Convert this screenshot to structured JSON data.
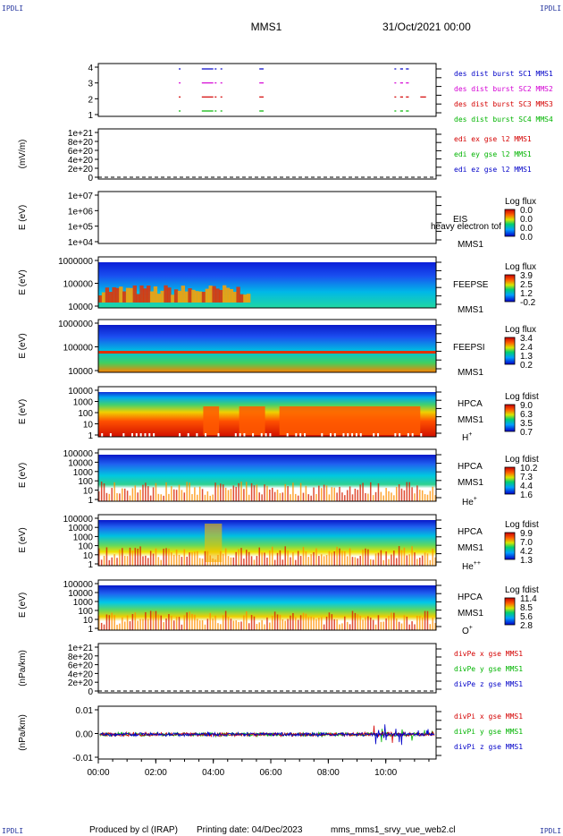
{
  "header": {
    "corner_left_top": "IPDLI",
    "corner_right_top": "IPDLI",
    "corner_left_bottom": "IPDLI",
    "corner_right_bottom": "IPDLI",
    "title": "MMS1",
    "datetime": "31/Oct/2021 00:00"
  },
  "footer": {
    "produced": "Produced by cl (IRAP)",
    "printing": "Printing date: 04/Dec/2023",
    "file": "mms_mms1_srvy_vue_web2.cl"
  },
  "colors": {
    "red": "#d40000",
    "green": "#00b400",
    "blue": "#0000c8",
    "magenta": "#d400d4"
  },
  "chart_data": [
    {
      "type": "line",
      "panel": "burst-status",
      "ytick_labels": [
        "1",
        "2",
        "3",
        "4"
      ],
      "ylim": [
        0.5,
        4.5
      ],
      "series": [
        {
          "name": "des dist burst SC1 MMS1",
          "color": "blue",
          "y": 4,
          "intervals": [
            [
              2.8,
              2.85
            ],
            [
              3.6,
              4.0
            ],
            [
              4.05,
              4.1
            ],
            [
              4.25,
              4.3
            ],
            [
              5.6,
              5.75
            ],
            [
              10.3,
              10.35
            ],
            [
              10.5,
              10.6
            ],
            [
              10.7,
              10.8
            ]
          ]
        },
        {
          "name": "des dist burst SC2 MMS2",
          "color": "magenta",
          "y": 3,
          "intervals": [
            [
              2.8,
              2.85
            ],
            [
              3.6,
              4.0
            ],
            [
              4.05,
              4.1
            ],
            [
              4.25,
              4.3
            ],
            [
              5.6,
              5.75
            ],
            [
              10.3,
              10.35
            ],
            [
              10.5,
              10.6
            ],
            [
              10.7,
              10.8
            ]
          ]
        },
        {
          "name": "des dist burst SC3 MMS3",
          "color": "red",
          "y": 2,
          "intervals": [
            [
              2.8,
              2.85
            ],
            [
              3.6,
              4.0
            ],
            [
              4.05,
              4.1
            ],
            [
              4.25,
              4.3
            ],
            [
              5.6,
              5.75
            ],
            [
              10.3,
              10.35
            ],
            [
              10.5,
              10.6
            ],
            [
              10.7,
              10.8
            ],
            [
              11.2,
              11.4
            ]
          ]
        },
        {
          "name": "des dist burst SC4 MMS4",
          "color": "green",
          "y": 1,
          "intervals": [
            [
              2.8,
              2.85
            ],
            [
              3.6,
              4.0
            ],
            [
              4.05,
              4.1
            ],
            [
              4.25,
              4.3
            ],
            [
              5.6,
              5.75
            ],
            [
              10.3,
              10.35
            ],
            [
              10.5,
              10.6
            ],
            [
              10.7,
              10.8
            ]
          ]
        }
      ]
    },
    {
      "type": "line",
      "panel": "edi-e",
      "ylabel": "(mV/m)",
      "ytick_labels": [
        "0",
        "2e+20",
        "4e+20",
        "6e+20",
        "8e+20",
        "1e+21"
      ],
      "ylim": [
        0,
        1e+21
      ],
      "series": [
        {
          "name": "edi ex gse l2 MMS1",
          "color": "red"
        },
        {
          "name": "edi ey gse l2 MMS1",
          "color": "green"
        },
        {
          "name": "edi ez gse l2 MMS1",
          "color": "blue"
        }
      ]
    },
    {
      "type": "heatmap",
      "panel": "eis",
      "ylabel": "E (eV)",
      "ytick_labels": [
        "1e+04",
        "1e+05",
        "1e+06",
        "1e+07"
      ],
      "ylim": [
        10000.0,
        10000000.0
      ],
      "right_labels": [
        "EIS",
        "MMS1"
      ],
      "overlay_text": "heavy electron tof",
      "colorbar": {
        "title": "Log flux",
        "ticks": [
          "0.0",
          "0.0",
          "0.0",
          "0.0"
        ]
      }
    },
    {
      "type": "heatmap",
      "panel": "feepse",
      "ylabel": "E (eV)",
      "ytick_labels": [
        "10000",
        "100000",
        "1000000"
      ],
      "ylim": [
        10000.0,
        1000000.0
      ],
      "right_labels": [
        "FEEPSE",
        "MMS1"
      ],
      "colorbar": {
        "title": "Log flux",
        "ticks": [
          "3.9",
          "2.5",
          "1.2",
          "-0.2"
        ]
      }
    },
    {
      "type": "heatmap",
      "panel": "feepsi",
      "ylabel": "E (eV)",
      "ytick_labels": [
        "10000",
        "100000",
        "1000000"
      ],
      "ylim": [
        10000.0,
        1000000.0
      ],
      "right_labels": [
        "FEEPSI",
        "MMS1"
      ],
      "colorbar": {
        "title": "Log flux",
        "ticks": [
          "3.4",
          "2.4",
          "1.3",
          "0.2"
        ]
      }
    },
    {
      "type": "heatmap",
      "panel": "hpca-h",
      "ylabel": "E (eV)",
      "ytick_labels": [
        "1",
        "10",
        "100",
        "1000",
        "10000"
      ],
      "ylim": [
        1,
        40000
      ],
      "right_labels": [
        "HPCA",
        "MMS1"
      ],
      "species": {
        "base": "H",
        "sup": "+"
      },
      "colorbar": {
        "title": "Log fdist",
        "ticks": [
          "9.0",
          "6.3",
          "3.5",
          "0.7"
        ]
      }
    },
    {
      "type": "heatmap",
      "panel": "hpca-he",
      "ylabel": "E (eV)",
      "ytick_labels": [
        "1",
        "10",
        "100",
        "1000",
        "10000",
        "100000"
      ],
      "ylim": [
        1,
        100000
      ],
      "right_labels": [
        "HPCA",
        "MMS1"
      ],
      "species": {
        "base": "He",
        "sup": "+"
      },
      "colorbar": {
        "title": "Log fdist",
        "ticks": [
          "10.2",
          "7.3",
          "4.4",
          "1.6"
        ]
      }
    },
    {
      "type": "heatmap",
      "panel": "hpca-hepp",
      "ylabel": "E (eV)",
      "ytick_labels": [
        "1",
        "10",
        "100",
        "1000",
        "10000",
        "100000"
      ],
      "ylim": [
        1,
        100000
      ],
      "right_labels": [
        "HPCA",
        "MMS1"
      ],
      "species": {
        "base": "He",
        "sup": "++"
      },
      "colorbar": {
        "title": "Log fdist",
        "ticks": [
          "9.9",
          "7.0",
          "4.2",
          "1.3"
        ]
      }
    },
    {
      "type": "heatmap",
      "panel": "hpca-o",
      "ylabel": "E (eV)",
      "ytick_labels": [
        "1",
        "10",
        "100",
        "1000",
        "10000",
        "100000"
      ],
      "ylim": [
        1,
        100000
      ],
      "right_labels": [
        "HPCA",
        "MMS1"
      ],
      "species": {
        "base": "O",
        "sup": "+"
      },
      "colorbar": {
        "title": "Log fdist",
        "ticks": [
          "11.4",
          "8.5",
          "5.6",
          "2.8"
        ]
      }
    },
    {
      "type": "line",
      "panel": "divpe",
      "ylabel": "(nPa/km)",
      "ytick_labels": [
        "0",
        "2e+20",
        "4e+20",
        "6e+20",
        "8e+20",
        "1e+21"
      ],
      "ylim": [
        0,
        1e+21
      ],
      "series": [
        {
          "name": "divPe x gse MMS1",
          "color": "red"
        },
        {
          "name": "divPe y gse MMS1",
          "color": "green"
        },
        {
          "name": "divPe z gse MMS1",
          "color": "blue"
        }
      ]
    },
    {
      "type": "line",
      "panel": "divpi",
      "ylabel": "(nPa/km)",
      "ytick_labels": [
        "-0.01",
        "0.00",
        "0.01"
      ],
      "ylim": [
        -0.015,
        0.015
      ],
      "series": [
        {
          "name": "divPi x gse MMS1",
          "color": "red"
        },
        {
          "name": "divPi y gse MMS1",
          "color": "green"
        },
        {
          "name": "divPi z gse MMS1",
          "color": "blue"
        }
      ]
    }
  ],
  "xaxis": {
    "xlim": [
      0,
      11.75
    ],
    "ticks": [
      0,
      2,
      4,
      6,
      8,
      10
    ],
    "tick_labels": [
      "00:00",
      "02:00",
      "04:00",
      "06:00",
      "08:00",
      "10:00"
    ]
  }
}
